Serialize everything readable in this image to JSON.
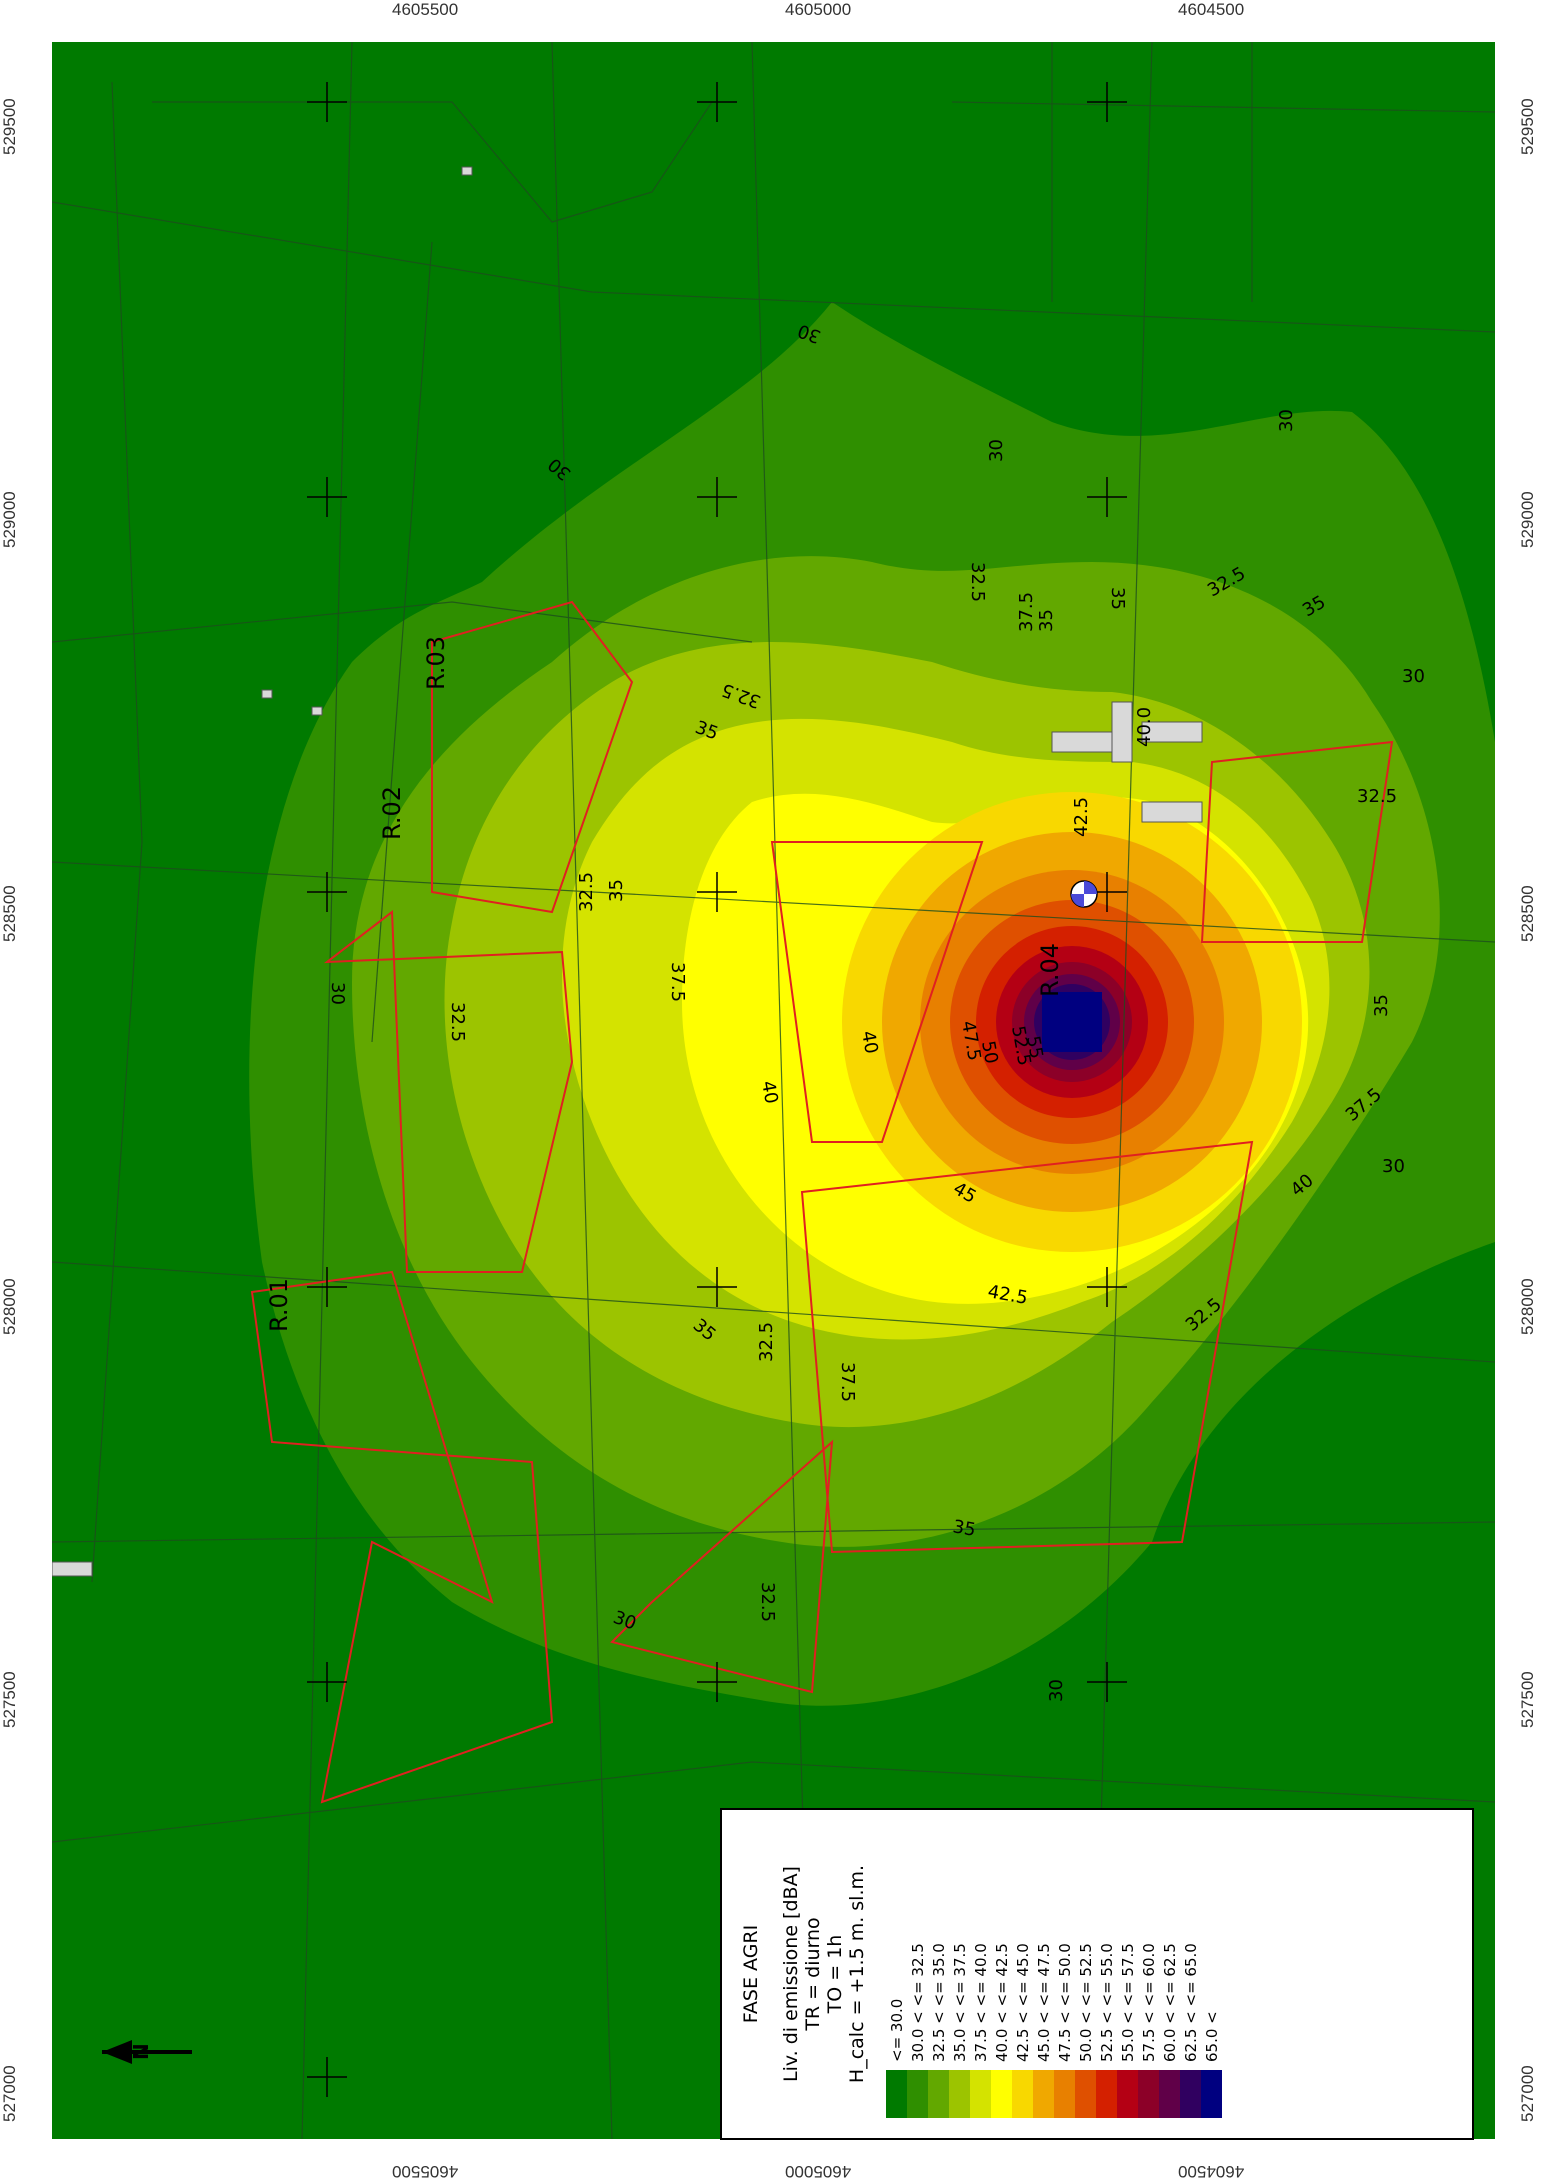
{
  "top_coords": [
    "4605500",
    "4605000",
    "4604500"
  ],
  "bottom_coords": [
    "4605500",
    "4605000",
    "4604500"
  ],
  "side_coords": [
    "529500",
    "529000",
    "528500",
    "528000",
    "527500",
    "527000"
  ],
  "receptors": [
    "R.01",
    "R.02",
    "R.03",
    "R.04"
  ],
  "contour_labels": [
    "30",
    "32.5",
    "35",
    "37.5",
    "40",
    "42.5",
    "45",
    "47.5",
    "50",
    "52.5",
    "55",
    "40.0"
  ],
  "legend": {
    "title": "FASE AGRI",
    "line1": "Liv. di emissione [dBA]",
    "line2": "TR = diurno",
    "line3": "TO = 1h",
    "line4": "H_calc = +1.5 m. sl.m.",
    "ranges": [
      {
        "label": "<=   30.0",
        "color": "#007a00"
      },
      {
        "label": "30.0 <   <=   32.5",
        "color": "#2f8f00"
      },
      {
        "label": "32.5 <   <=   35.0",
        "color": "#62a800"
      },
      {
        "label": "35.0 <   <=   37.5",
        "color": "#9cc400"
      },
      {
        "label": "37.5 <   <=   40.0",
        "color": "#d4e300"
      },
      {
        "label": "40.0 <   <=   42.5",
        "color": "#ffff00"
      },
      {
        "label": "42.5 <   <=   45.0",
        "color": "#f8d800"
      },
      {
        "label": "45.0 <   <=   47.5",
        "color": "#f0a800"
      },
      {
        "label": "47.5 <   <=   50.0",
        "color": "#e88000"
      },
      {
        "label": "50.0 <   <=   52.5",
        "color": "#df5000"
      },
      {
        "label": "52.5 <   <=   55.0",
        "color": "#d42000"
      },
      {
        "label": "55.0 <   <=   57.5",
        "color": "#b40014"
      },
      {
        "label": "57.5 <   <=   60.0",
        "color": "#8c0028"
      },
      {
        "label": "60.0 <   <=   62.5",
        "color": "#600048"
      },
      {
        "label": "62.5 <   <=   65.0",
        "color": "#300060"
      },
      {
        "label": "65.0 <",
        "color": "#000080"
      }
    ]
  },
  "north_label": "N"
}
